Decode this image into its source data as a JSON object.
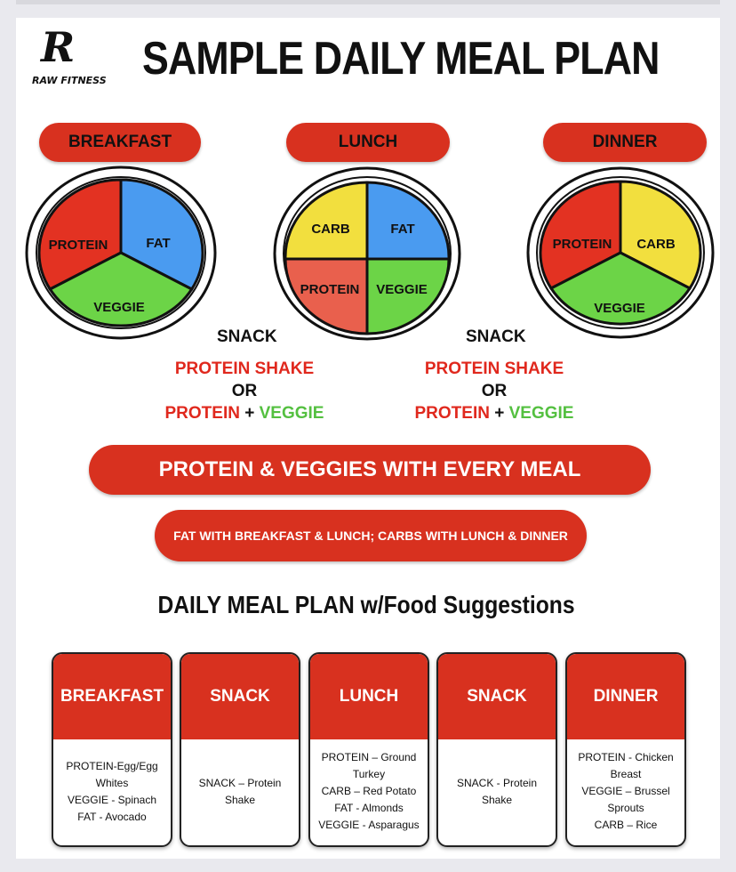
{
  "header": {
    "logo_letter": "R",
    "logo_text": "RAW FITNESS",
    "title": "SAMPLE DAILY MEAL PLAN"
  },
  "plates": [
    {
      "label": "BREAKFAST",
      "segments": [
        "PROTEIN",
        "FAT",
        "VEGGIE"
      ]
    },
    {
      "label": "LUNCH",
      "segments": [
        "CARB",
        "FAT",
        "PROTEIN",
        "VEGGIE"
      ]
    },
    {
      "label": "DINNER",
      "segments": [
        "PROTEIN",
        "CARB",
        "VEGGIE"
      ]
    }
  ],
  "snacks": [
    {
      "heading": "SNACK",
      "line1": "PROTEIN SHAKE",
      "or": "OR",
      "protein": "PROTEIN",
      "plus": "+",
      "veggie": "VEGGIE"
    },
    {
      "heading": "SNACK",
      "line1": "PROTEIN SHAKE",
      "or": "OR",
      "protein": "PROTEIN",
      "plus": "+",
      "veggie": "VEGGIE"
    }
  ],
  "banners": {
    "main": "PROTEIN & VEGGIES WITH EVERY MEAL",
    "secondary": "FAT WITH BREAKFAST & LUNCH; CARBS WITH LUNCH & DINNER"
  },
  "suggestions_title": "DAILY MEAL PLAN w/Food Suggestions",
  "cards": [
    {
      "title": "BREAKFAST",
      "lines": [
        "PROTEIN-Egg/Egg",
        "Whites",
        "VEGGIE - Spinach",
        "FAT - Avocado"
      ]
    },
    {
      "title": "SNACK",
      "lines": [
        "SNACK – Protein Shake"
      ]
    },
    {
      "title": "LUNCH",
      "lines": [
        "PROTEIN – Ground",
        "Turkey",
        "CARB – Red Potato",
        "FAT  - Almonds",
        "VEGGIE - Asparagus"
      ]
    },
    {
      "title": "SNACK",
      "lines": [
        "SNACK  - Protein Shake"
      ]
    },
    {
      "title": "DINNER",
      "lines": [
        "PROTEIN  - Chicken",
        "Breast",
        "VEGGIE – Brussel",
        "Sprouts",
        "CARB – Rice"
      ]
    }
  ],
  "colors": {
    "brand_red": "#d8311f",
    "protein_red": "#e33222",
    "protein_light": "#e9604d",
    "fat_blue": "#4a9bf0",
    "veggie_green": "#6cd447",
    "carb_yellow": "#f2df3e"
  }
}
